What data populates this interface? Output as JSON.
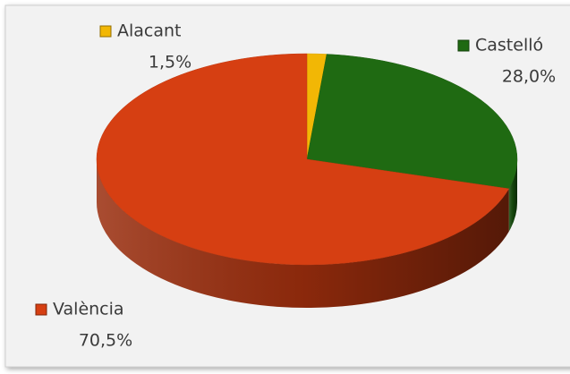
{
  "chart_data": {
    "type": "pie",
    "three_d": true,
    "categories": [
      "Alacant",
      "Castelló",
      "València"
    ],
    "values": [
      1.5,
      28.0,
      70.5
    ],
    "value_labels": [
      "1,5%",
      "28,0%",
      "70,5%"
    ],
    "colors": [
      "#f2b705",
      "#1f6a12",
      "#d63f12"
    ]
  }
}
